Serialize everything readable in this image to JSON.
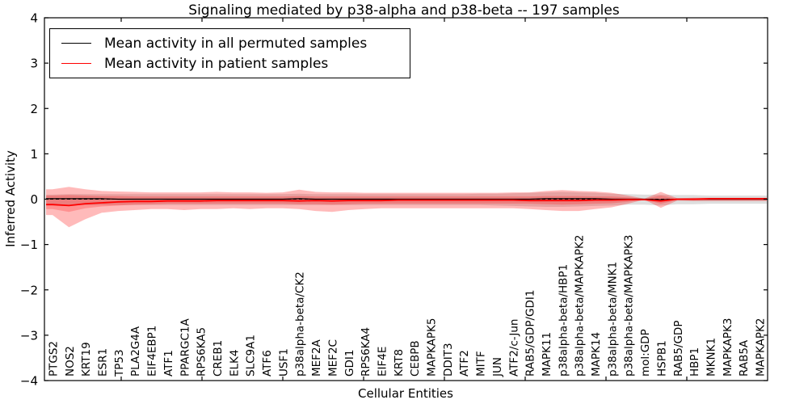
{
  "title": "Signaling mediated by p38-alpha and p38-beta -- 197 samples",
  "chart_data": {
    "type": "line",
    "title": "Signaling mediated by p38-alpha and p38-beta -- 197 samples",
    "xlabel": "Cellular Entities",
    "ylabel": "Inferred Activity",
    "ylim": [
      -4,
      4
    ],
    "yticks": [
      -4,
      -3,
      -2,
      -1,
      0,
      1,
      2,
      3,
      4
    ],
    "grid": false,
    "legend": {
      "position": "upper left",
      "entries": [
        {
          "label": "Mean activity in all permuted samples",
          "color": "#000000"
        },
        {
          "label": "Mean activity in patient samples",
          "color": "#ff0000"
        }
      ]
    },
    "zero_line": {
      "value": 0,
      "style": "dashed",
      "color": "#000000"
    },
    "categories": [
      "PTGS2",
      "NOS2",
      "KRT19",
      "ESR1",
      "TP53",
      "PLA2G4A",
      "EIF4EBP1",
      "ATF1",
      "PPARGC1A",
      "RPS6KA5",
      "CREB1",
      "ELK4",
      "SLC9A1",
      "ATF6",
      "USF1",
      "p38alpha-beta/CK2",
      "MEF2A",
      "MEF2C",
      "GDI1",
      "RPS6KA4",
      "EIF4E",
      "KRT8",
      "CEBPB",
      "MAPKAPK5",
      "DDIT3",
      "ATF2",
      "MITF",
      "JUN",
      "ATF2/c-Jun",
      "RAB5/GDP/GDI1",
      "MAPK11",
      "p38alpha-beta/HBP1",
      "p38alpha-beta/MAPKAPK2",
      "MAPK14",
      "p38alpha-beta/MNK1",
      "p38alpha-beta/MAPKAPK3",
      "mol:GDP",
      "HSPB1",
      "RAB5/GDP",
      "HBP1",
      "MKNK1",
      "MAPKAPK3",
      "RAB5A",
      "MAPKAPK2"
    ],
    "series": [
      {
        "name": "Mean activity in all permuted samples",
        "color": "#000000",
        "width": 1.2,
        "values": [
          0.01,
          0.01,
          0.01,
          0.01,
          0,
          0,
          0,
          0,
          0,
          0,
          0,
          0,
          0,
          0,
          0,
          0.01,
          0,
          0,
          0,
          0,
          0,
          0,
          0,
          0,
          0,
          0,
          0,
          0,
          0,
          0,
          0.01,
          0.01,
          0.01,
          0.01,
          0,
          0,
          0,
          -0.01,
          0,
          0,
          0,
          0,
          0,
          0
        ]
      },
      {
        "name": "Mean activity in patient samples",
        "color": "#ff0000",
        "width": 1.8,
        "values": [
          -0.12,
          -0.14,
          -0.1,
          -0.08,
          -0.06,
          -0.05,
          -0.05,
          -0.04,
          -0.04,
          -0.04,
          -0.03,
          -0.03,
          -0.03,
          -0.03,
          -0.03,
          -0.04,
          -0.03,
          -0.04,
          -0.03,
          -0.03,
          -0.03,
          -0.02,
          -0.02,
          -0.02,
          -0.02,
          -0.02,
          -0.02,
          -0.02,
          -0.02,
          -0.03,
          -0.03,
          -0.03,
          -0.03,
          -0.02,
          -0.02,
          -0.01,
          -0.01,
          -0.04,
          0,
          0,
          0.01,
          0.01,
          0.01,
          0.01
        ]
      }
    ],
    "bands": [
      {
        "name": "permuted-samples-range",
        "color": "#000000",
        "opacity": 0.13,
        "top": [
          0.1,
          0.11,
          0.11,
          0.11,
          0.11,
          0.11,
          0.11,
          0.11,
          0.11,
          0.11,
          0.11,
          0.11,
          0.11,
          0.11,
          0.11,
          0.12,
          0.11,
          0.11,
          0.11,
          0.11,
          0.11,
          0.11,
          0.11,
          0.11,
          0.11,
          0.11,
          0.12,
          0.12,
          0.13,
          0.14,
          0.15,
          0.16,
          0.15,
          0.14,
          0.12,
          0.11,
          0.1,
          0.1,
          0.09,
          0.09,
          0.08,
          0.08,
          0.08,
          0.08
        ],
        "bottom": [
          -0.12,
          -0.13,
          -0.13,
          -0.13,
          -0.13,
          -0.13,
          -0.13,
          -0.13,
          -0.13,
          -0.13,
          -0.13,
          -0.13,
          -0.13,
          -0.13,
          -0.13,
          -0.13,
          -0.13,
          -0.13,
          -0.13,
          -0.13,
          -0.13,
          -0.13,
          -0.13,
          -0.13,
          -0.13,
          -0.13,
          -0.13,
          -0.14,
          -0.15,
          -0.16,
          -0.17,
          -0.17,
          -0.16,
          -0.15,
          -0.14,
          -0.12,
          -0.12,
          -0.14,
          -0.11,
          -0.11,
          -0.1,
          -0.1,
          -0.1,
          -0.1
        ]
      },
      {
        "name": "patient-samples-outer-range",
        "color": "#ff0000",
        "opacity": 0.27,
        "top": [
          0.22,
          0.27,
          0.22,
          0.18,
          0.17,
          0.16,
          0.15,
          0.15,
          0.15,
          0.15,
          0.16,
          0.15,
          0.15,
          0.14,
          0.15,
          0.21,
          0.16,
          0.15,
          0.15,
          0.14,
          0.14,
          0.14,
          0.14,
          0.14,
          0.14,
          0.14,
          0.14,
          0.14,
          0.15,
          0.15,
          0.18,
          0.2,
          0.18,
          0.17,
          0.14,
          0.08,
          0.01,
          0.16,
          0.02,
          0.03,
          0.03,
          0.03,
          0.03,
          0.03
        ],
        "bottom": [
          -0.35,
          -0.62,
          -0.44,
          -0.3,
          -0.26,
          -0.24,
          -0.22,
          -0.22,
          -0.24,
          -0.22,
          -0.22,
          -0.2,
          -0.22,
          -0.2,
          -0.2,
          -0.22,
          -0.26,
          -0.28,
          -0.24,
          -0.22,
          -0.2,
          -0.2,
          -0.2,
          -0.2,
          -0.2,
          -0.2,
          -0.2,
          -0.2,
          -0.2,
          -0.22,
          -0.24,
          -0.26,
          -0.26,
          -0.22,
          -0.18,
          -0.1,
          -0.01,
          -0.19,
          -0.03,
          -0.04,
          -0.04,
          -0.04,
          -0.04,
          -0.04
        ]
      },
      {
        "name": "patient-samples-inner-range",
        "color": "#ff0000",
        "opacity": 0.22,
        "top": [
          0.08,
          0.09,
          0.08,
          0.07,
          0.07,
          0.06,
          0.06,
          0.06,
          0.06,
          0.06,
          0.06,
          0.06,
          0.06,
          0.06,
          0.06,
          0.07,
          0.06,
          0.06,
          0.06,
          0.06,
          0.06,
          0.06,
          0.06,
          0.06,
          0.06,
          0.06,
          0.06,
          0.06,
          0.06,
          0.06,
          0.07,
          0.07,
          0.07,
          0.06,
          0.06,
          0.04,
          0.01,
          0.08,
          0.01,
          0.02,
          0.02,
          0.02,
          0.02,
          0.02
        ],
        "bottom": [
          -0.22,
          -0.28,
          -0.2,
          -0.16,
          -0.14,
          -0.12,
          -0.11,
          -0.1,
          -0.1,
          -0.1,
          -0.1,
          -0.1,
          -0.1,
          -0.1,
          -0.1,
          -0.11,
          -0.11,
          -0.12,
          -0.11,
          -0.1,
          -0.1,
          -0.1,
          -0.1,
          -0.1,
          -0.1,
          -0.1,
          -0.1,
          -0.1,
          -0.1,
          -0.1,
          -0.11,
          -0.12,
          -0.11,
          -0.1,
          -0.09,
          -0.06,
          -0.01,
          -0.1,
          -0.02,
          -0.03,
          -0.03,
          -0.03,
          -0.03,
          -0.03
        ]
      }
    ]
  }
}
